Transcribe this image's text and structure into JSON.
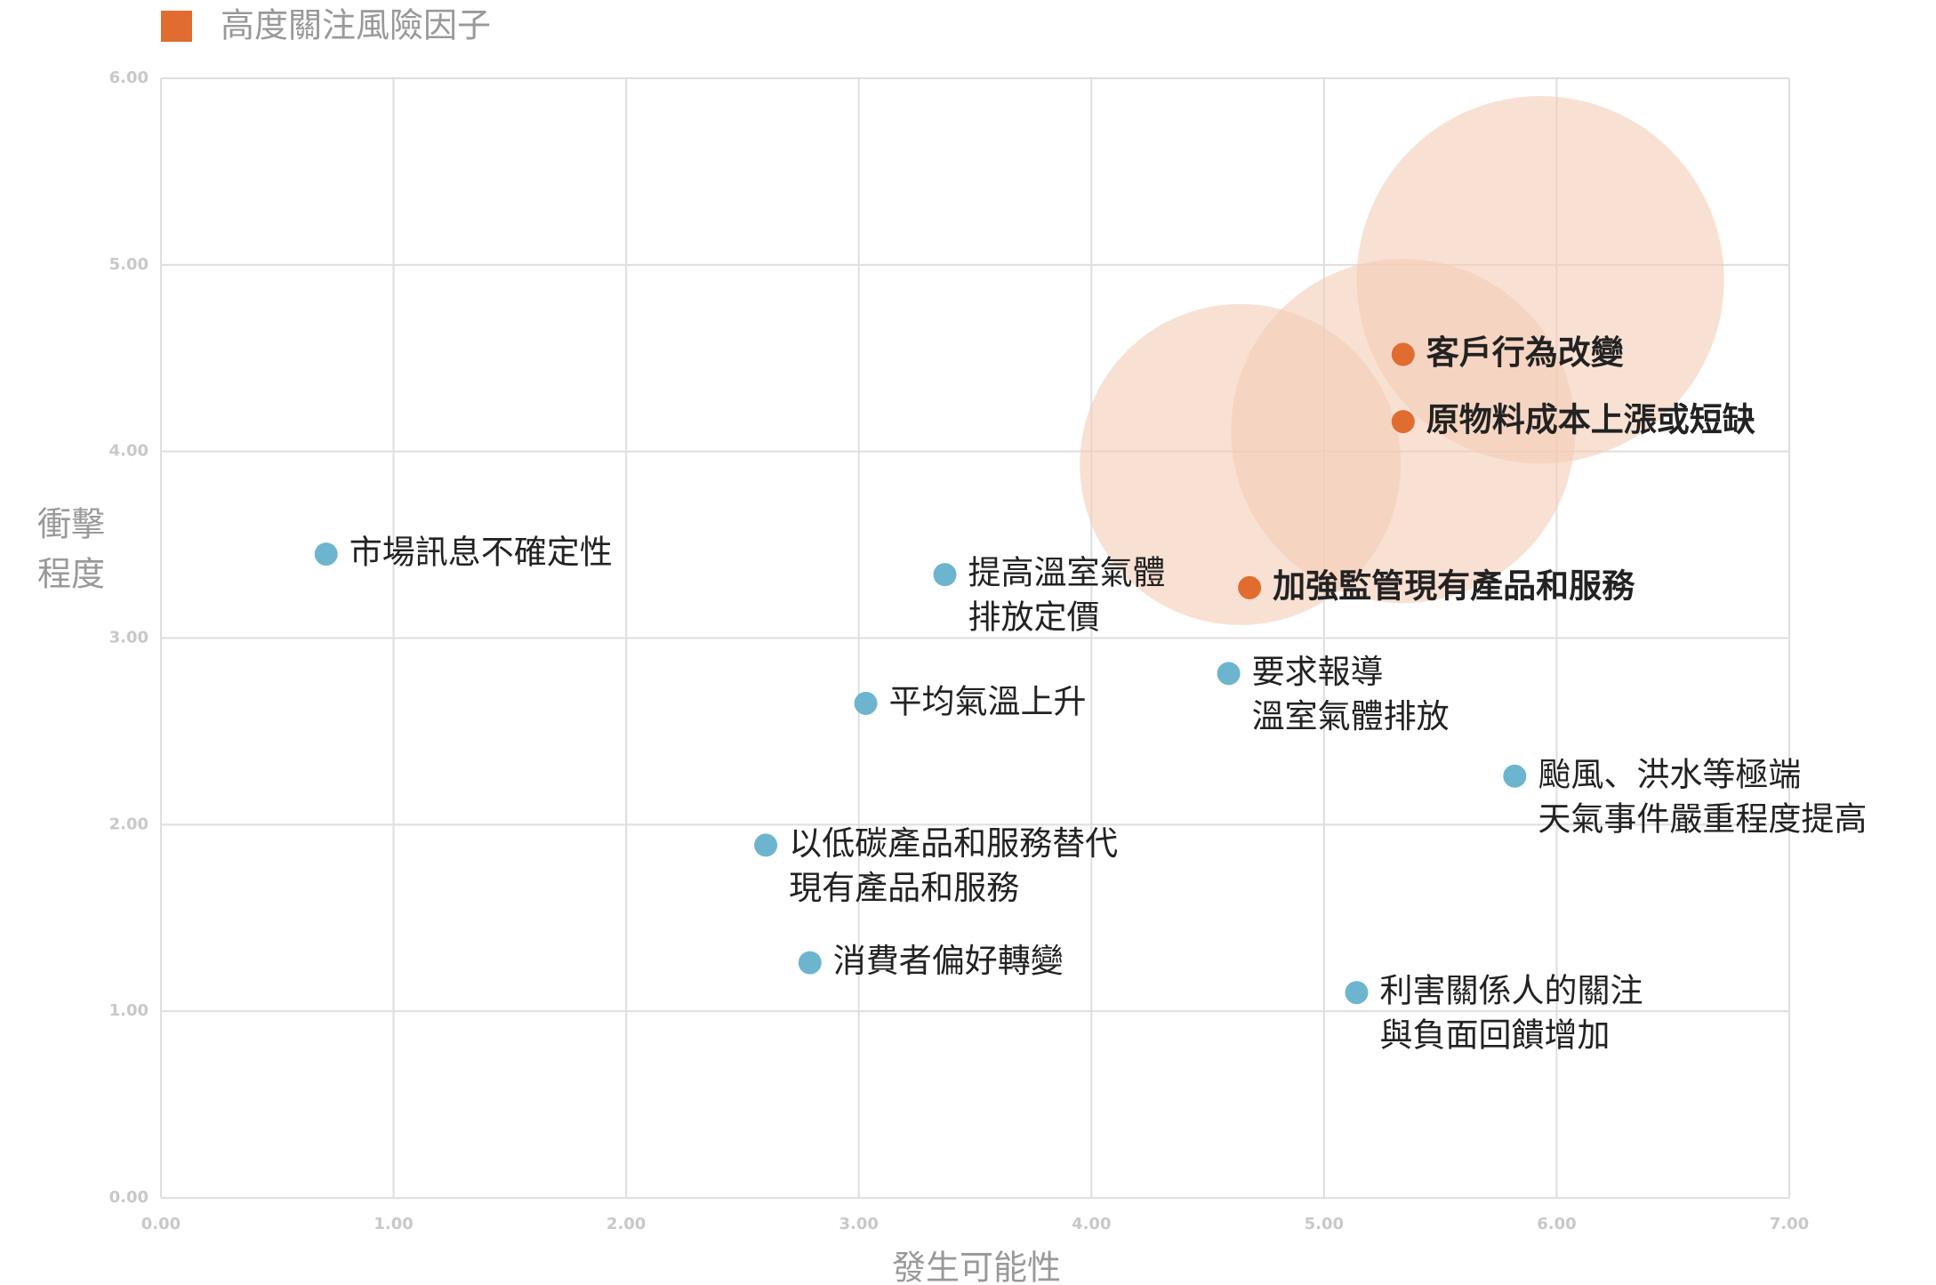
{
  "chart_data": {
    "type": "scatter",
    "xlabel": "發生可能性",
    "ylabel": [
      "衝擊",
      "程度"
    ],
    "xlim": [
      0,
      7
    ],
    "ylim": [
      0,
      6
    ],
    "xticks": [
      {
        "value": 0,
        "label": "0.00"
      },
      {
        "value": 1,
        "label": "1.00"
      },
      {
        "value": 2,
        "label": "2.00"
      },
      {
        "value": 3,
        "label": "3.00"
      },
      {
        "value": 4,
        "label": "4.00"
      },
      {
        "value": 5,
        "label": "5.00"
      },
      {
        "value": 6,
        "label": "6.00"
      },
      {
        "value": 7,
        "label": "7.00"
      }
    ],
    "yticks": [
      {
        "value": 0,
        "label": "0.00"
      },
      {
        "value": 1,
        "label": "1.00"
      },
      {
        "value": 2,
        "label": "2.00"
      },
      {
        "value": 3,
        "label": "3.00"
      },
      {
        "value": 4,
        "label": "4.00"
      },
      {
        "value": 5,
        "label": "5.00"
      },
      {
        "value": 6,
        "label": "6.00"
      }
    ],
    "grid": true,
    "legend": "top-left",
    "bubbles": {
      "color": "#f3cdb6",
      "x": [
        4.64,
        5.34,
        5.93
      ],
      "y": [
        3.93,
        4.11,
        4.92
      ],
      "sizes": [
        0.69,
        0.74,
        0.79
      ]
    },
    "series": [
      {
        "color": "#6db5cf",
        "x": [
          0.71,
          3.37,
          3.03,
          4.59,
          5.82,
          2.6,
          2.79,
          5.14
        ],
        "y": [
          3.45,
          3.34,
          2.65,
          2.81,
          2.26,
          1.89,
          1.26,
          1.1
        ],
        "labels": [
          [
            "市場訊息不確定性"
          ],
          [
            "提高溫室氣體",
            "排放定價"
          ],
          [
            "平均氣溫上升"
          ],
          [
            "要求報導",
            "溫室氣體排放"
          ],
          [
            "颱風、洪水等極端",
            "天氣事件嚴重程度提高"
          ],
          [
            "以低碳產品和服務替代",
            "現有產品和服務"
          ],
          [
            "消費者偏好轉變"
          ],
          [
            "利害關係人的關注",
            "與負面回饋增加"
          ]
        ]
      },
      {
        "name": "高度關注風險因子",
        "color": "#e06c30",
        "bold": true,
        "x": [
          5.34,
          5.34,
          4.68
        ],
        "y": [
          4.52,
          4.16,
          3.27
        ],
        "labels": [
          [
            "客戶行為改變"
          ],
          [
            "原物料成本上漲或短缺"
          ],
          [
            "加強監管現有產品和服務"
          ]
        ]
      }
    ]
  }
}
